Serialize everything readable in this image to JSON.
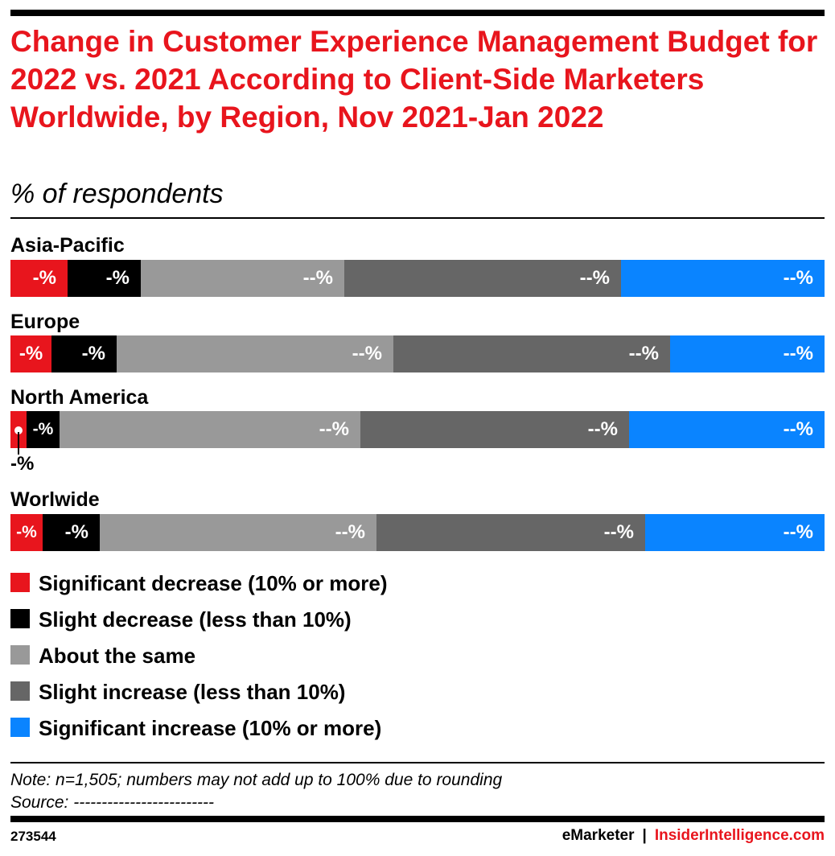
{
  "header": {
    "title": "Change in Customer Experience Management Budget for 2022 vs. 2021 According to Client-Side Marketers Worldwide, by Region, Nov 2021-Jan 2022",
    "subtitle": "% of respondents"
  },
  "chart_data": {
    "type": "bar",
    "orientation": "horizontal",
    "stacked": true,
    "title": "Change in Customer Experience Management Budget for 2022 vs. 2021 According to Client-Side Marketers Worldwide, by Region, Nov 2021-Jan 2022",
    "subtitle": "% of respondents",
    "categories": [
      "Asia-Pacific",
      "Europe",
      "North America",
      "Worlwide"
    ],
    "xlim": [
      0,
      100
    ],
    "grid": false,
    "legend_position": "bottom",
    "series": [
      {
        "name": "Significant decrease (10% or more)",
        "color": "#e8151d",
        "values": [
          7,
          5,
          2,
          4
        ],
        "labels": [
          "-%",
          "-%",
          "-%",
          "-%"
        ]
      },
      {
        "name": "Slight decrease (less than 10%)",
        "color": "#000000",
        "values": [
          9,
          8,
          4,
          7
        ],
        "labels": [
          "-%",
          "-%",
          "-%",
          "-%"
        ]
      },
      {
        "name": "About the same",
        "color": "#999999",
        "values": [
          25,
          34,
          37,
          34
        ],
        "labels": [
          "--%",
          "--%",
          "--%",
          "--%"
        ]
      },
      {
        "name": "Slight increase (less than 10%)",
        "color": "#666666",
        "values": [
          34,
          34,
          33,
          33
        ],
        "labels": [
          "--%",
          "--%",
          "--%",
          "--%"
        ]
      },
      {
        "name": "Significant increase (10% or more)",
        "color": "#0a84ff",
        "values": [
          25,
          19,
          24,
          22
        ],
        "labels": [
          "--%",
          "--%",
          "--%",
          "--%"
        ]
      }
    ]
  },
  "footer": {
    "note": "Note: n=1,505; numbers may not add up to 100% due to rounding",
    "source": "Source: -------------------------",
    "chart_id": "273544",
    "brand_left": "eMarketer",
    "brand_sep": "|",
    "brand_right": "InsiderIntelligence.com"
  }
}
